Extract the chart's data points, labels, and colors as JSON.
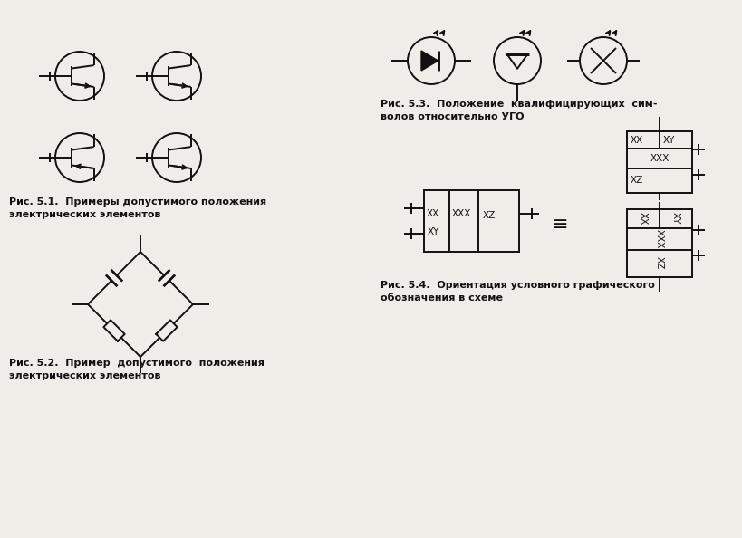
{
  "bg_color": "#f0ede8",
  "line_color": "#111111",
  "caption_51_line1": "Рис. 5.1.  Примеры допустимого положения",
  "caption_51_line2": "электрических элементов",
  "caption_52_line1": "Рис. 5.2.  Пример  допустимого  положения",
  "caption_52_line2": "электрических элементов",
  "caption_53_line1": "Рис. 5.3.  Положение  квалифицирующих  сим-",
  "caption_53_line2": "волов относительно УГО",
  "caption_54_line1": "Рис. 5.4.  Ориентация условного графического",
  "caption_54_line2": "обозначения в схеме"
}
